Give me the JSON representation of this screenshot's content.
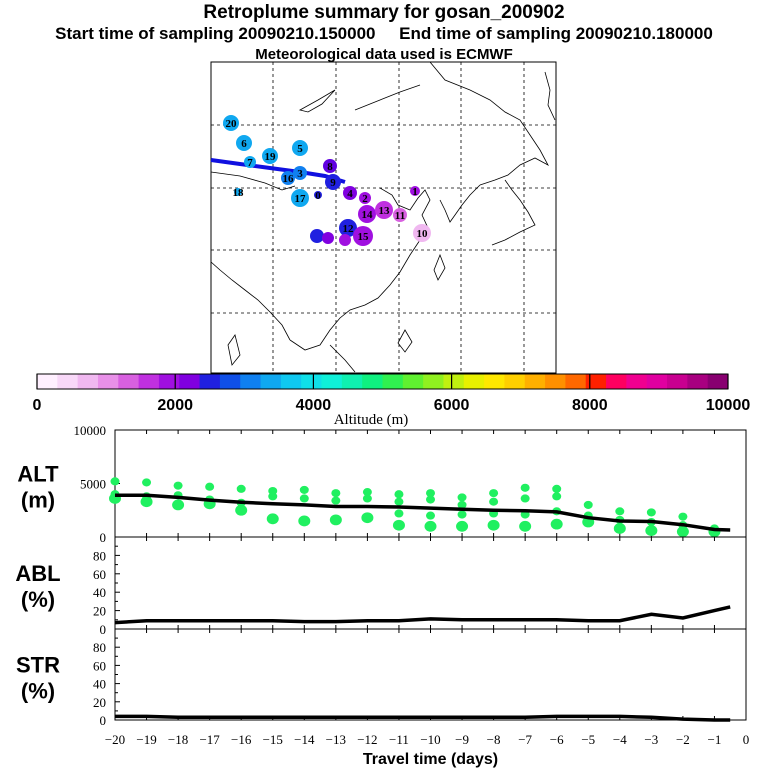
{
  "header": {
    "title": "Retroplume summary for gosan_200902",
    "sampling": "Start time of sampling 20090210.150000     End time of sampling 20090210.180000",
    "meteorology": "Meteorological data used is ECMWF"
  },
  "colorbar": {
    "label": "Altitude (m)",
    "ticks": [
      "0",
      "2000",
      "4000",
      "6000",
      "8000",
      "10000"
    ],
    "colors": [
      "#fff0ff",
      "#f8d8f8",
      "#f0b8f0",
      "#e890e8",
      "#d860e0",
      "#c030e0",
      "#a010e0",
      "#8000e0",
      "#2020e0",
      "#1050e8",
      "#1080f0",
      "#10a8f0",
      "#10c8f0",
      "#10e0e8",
      "#10f0d8",
      "#10f0b0",
      "#10f080",
      "#30f050",
      "#60f030",
      "#90f020",
      "#c0f010",
      "#e8f000",
      "#ffe800",
      "#ffd000",
      "#ffb000",
      "#ff9000",
      "#ff6800",
      "#ff2000",
      "#ff0060",
      "#f00090",
      "#e000a0",
      "#c80090",
      "#a80080",
      "#880070"
    ]
  },
  "map": {
    "labels": [
      "20",
      "6",
      "19",
      "5",
      "7",
      "18",
      "3",
      "16",
      "8",
      "17",
      "0",
      "9",
      "4",
      "2",
      "1",
      "14",
      "13",
      "12",
      "11",
      "10",
      "15"
    ]
  },
  "chart_data": [
    {
      "type": "line",
      "panel": "ALT",
      "ylabel": "ALT\n(m)",
      "ylabel_lines": [
        "ALT",
        "(m)"
      ],
      "ylim": [
        0,
        10000
      ],
      "yticks": [
        "10000",
        "5000",
        "0"
      ],
      "x": [
        -20,
        -19,
        -18,
        -17,
        -16,
        -15,
        -14,
        -13,
        -12,
        -11,
        -10,
        -9,
        -8,
        -7,
        -6,
        -5,
        -4,
        -3,
        -2,
        -1,
        -0.5
      ],
      "series": [
        {
          "name": "mean altitude",
          "values": [
            3900,
            3900,
            3700,
            3450,
            3250,
            3100,
            3000,
            2850,
            2850,
            2800,
            2700,
            2600,
            2500,
            2450,
            2350,
            1800,
            1500,
            1450,
            1150,
            700,
            650
          ]
        }
      ],
      "clusters": [
        {
          "x": -20,
          "y": [
            5200,
            4000,
            3600
          ]
        },
        {
          "x": -19,
          "y": [
            5100,
            3800,
            3300
          ]
        },
        {
          "x": -18,
          "y": [
            4800,
            3900,
            3000
          ]
        },
        {
          "x": -17,
          "y": [
            4700,
            3500,
            3100
          ]
        },
        {
          "x": -16,
          "y": [
            4500,
            3200,
            2500
          ]
        },
        {
          "x": -15,
          "y": [
            4300,
            3800,
            1700
          ]
        },
        {
          "x": -14,
          "y": [
            4400,
            3600,
            1500
          ]
        },
        {
          "x": -13,
          "y": [
            4100,
            3400,
            1600
          ]
        },
        {
          "x": -12,
          "y": [
            4200,
            3600,
            1800
          ]
        },
        {
          "x": -11,
          "y": [
            4000,
            3300,
            2200,
            1100
          ]
        },
        {
          "x": -10,
          "y": [
            4100,
            3500,
            2000,
            1000
          ]
        },
        {
          "x": -9,
          "y": [
            3700,
            3000,
            2100,
            1000
          ]
        },
        {
          "x": -8,
          "y": [
            4100,
            3300,
            2200,
            1100
          ]
        },
        {
          "x": -7,
          "y": [
            4600,
            3600,
            2100,
            1000
          ]
        },
        {
          "x": -6,
          "y": [
            4500,
            3800,
            2400,
            1200
          ]
        },
        {
          "x": -5,
          "y": [
            3000,
            2000,
            1400
          ]
        },
        {
          "x": -4,
          "y": [
            2400,
            1600,
            800
          ]
        },
        {
          "x": -3,
          "y": [
            2300,
            1400,
            600
          ]
        },
        {
          "x": -2,
          "y": [
            1900,
            1100,
            500
          ]
        },
        {
          "x": -1,
          "y": [
            800,
            500
          ]
        }
      ]
    },
    {
      "type": "line",
      "panel": "ABL",
      "ylabel": "ABL\n(%)",
      "ylabel_lines": [
        "ABL",
        "(%)"
      ],
      "ylim": [
        0,
        100
      ],
      "yticks": [
        "80",
        "60",
        "40",
        "20",
        "0"
      ],
      "x": [
        -20,
        -19,
        -18,
        -17,
        -16,
        -15,
        -14,
        -13,
        -12,
        -11,
        -10,
        -9,
        -8,
        -7,
        -6,
        -5,
        -4,
        -3,
        -2,
        -1,
        -0.5
      ],
      "series": [
        {
          "name": "ABL fraction",
          "values": [
            7,
            9,
            9,
            9,
            9,
            9,
            8,
            8,
            9,
            9,
            11,
            10,
            10,
            10,
            10,
            9,
            9,
            16,
            12,
            20,
            24
          ]
        }
      ]
    },
    {
      "type": "line",
      "panel": "STR",
      "ylabel": "STR\n(%)",
      "ylabel_lines": [
        "STR",
        "(%)"
      ],
      "ylim": [
        0,
        100
      ],
      "yticks": [
        "80",
        "60",
        "40",
        "20",
        "0"
      ],
      "x": [
        -20,
        -19,
        -18,
        -17,
        -16,
        -15,
        -14,
        -13,
        -12,
        -11,
        -10,
        -9,
        -8,
        -7,
        -6,
        -5,
        -4,
        -3,
        -2,
        -1,
        -0.5
      ],
      "series": [
        {
          "name": "STR fraction",
          "values": [
            4,
            4,
            3,
            3,
            3,
            3,
            3,
            3,
            3,
            3,
            3,
            3,
            3,
            3,
            4,
            4,
            4,
            3,
            1,
            0,
            0
          ]
        }
      ],
      "xlabel": "Travel time (days)",
      "xticks": [
        "-20",
        "-19",
        "-18",
        "-17",
        "-16",
        "-15",
        "-14",
        "-13",
        "-12",
        "-11",
        "-10",
        "-9",
        "-8",
        "-7",
        "-6",
        "-5",
        "-4",
        "-3",
        "-2",
        "-1",
        "0"
      ]
    }
  ]
}
